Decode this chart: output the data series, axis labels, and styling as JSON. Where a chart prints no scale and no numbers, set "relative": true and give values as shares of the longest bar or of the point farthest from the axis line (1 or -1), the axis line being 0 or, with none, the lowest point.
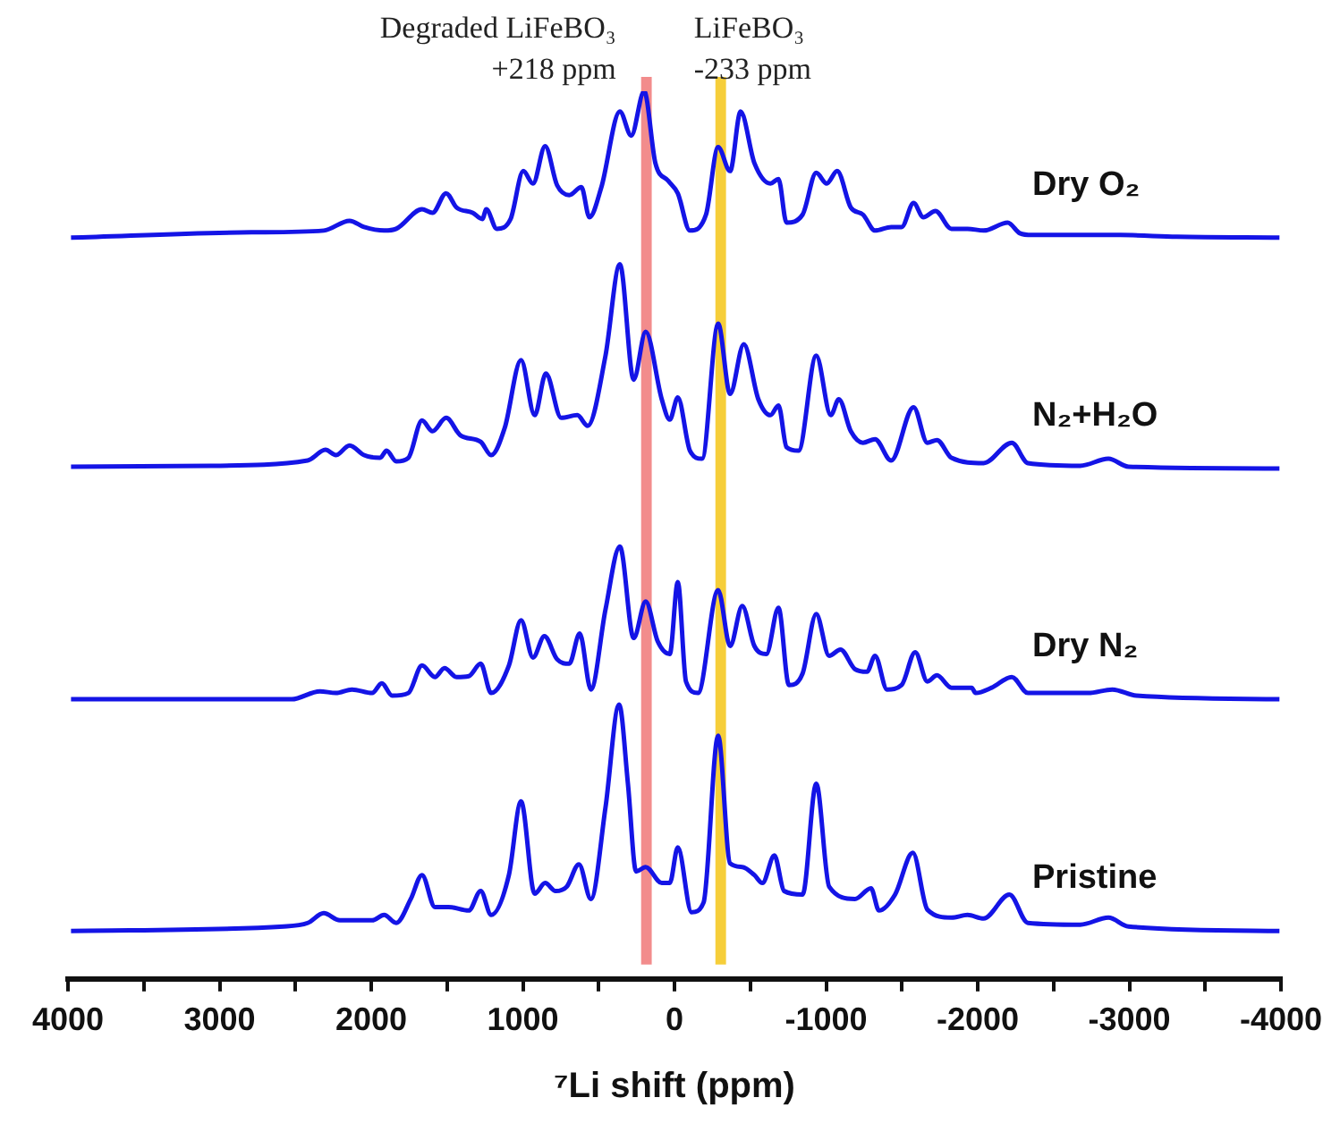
{
  "chart_data": {
    "type": "line",
    "relative": true,
    "xlabel": "⁷Li shift (ppm)",
    "xlim": [
      4000,
      -4000
    ],
    "xticks": [
      4000,
      {
        "value": 3500,
        "label": null
      },
      3000,
      {
        "value": 2500,
        "label": null
      },
      2000,
      {
        "value": 1500,
        "label": null
      },
      1000,
      {
        "value": 500,
        "label": null
      },
      0,
      {
        "value": -500,
        "label": null
      },
      -1000,
      {
        "value": -1500,
        "label": null
      },
      -2000,
      {
        "value": -2500,
        "label": null
      },
      -3000,
      {
        "value": -3500,
        "label": null
      },
      -4000
    ],
    "legend": false,
    "grid": false,
    "marker": "none",
    "bands": [
      {
        "axis": "x",
        "from": 150,
        "to": 220,
        "label": "Degraded LiFeBO₃\n+218 ppm",
        "color": "#f07878"
      },
      {
        "axis": "x",
        "from": -270,
        "to": -340,
        "label": "LiFeBO₃\n-233 ppm",
        "color": "#f5c518"
      }
    ],
    "series": [
      {
        "name": "Dry O₂",
        "color": "#1414e6",
        "x": [
          3980,
          2790,
          2313,
          2143,
          2047,
          1915,
          1835,
          1665,
          1596,
          1506,
          1437,
          1331,
          1267,
          1241,
          1172,
          1081,
          997,
          933,
          853,
          774,
          694,
          614,
          561,
          482,
          360,
          285,
          200,
          126,
          41,
          -22,
          -102,
          -208,
          -288,
          -367,
          -436,
          -527,
          -633,
          -686,
          -739,
          -845,
          -935,
          -1004,
          -1073,
          -1163,
          -1243,
          -1323,
          -1429,
          -1498,
          -1577,
          -1641,
          -1721,
          -1827,
          -1933,
          -2039,
          -2198,
          -2278,
          -2358,
          -2941,
          -3313,
          -3990
        ],
        "values": [
          0.835,
          0.841,
          0.843,
          0.854,
          0.847,
          0.843,
          0.845,
          0.867,
          0.863,
          0.885,
          0.869,
          0.863,
          0.856,
          0.867,
          0.845,
          0.856,
          0.91,
          0.896,
          0.938,
          0.894,
          0.883,
          0.892,
          0.858,
          0.892,
          0.977,
          0.95,
          1.0,
          0.919,
          0.899,
          0.885,
          0.843,
          0.861,
          0.937,
          0.91,
          0.977,
          0.919,
          0.896,
          0.901,
          0.852,
          0.861,
          0.908,
          0.896,
          0.91,
          0.869,
          0.861,
          0.843,
          0.847,
          0.847,
          0.874,
          0.858,
          0.865,
          0.845,
          0.845,
          0.843,
          0.852,
          0.84,
          0.838,
          0.838,
          0.836,
          0.835
        ]
      },
      {
        "name": "N₂+H₂O",
        "color": "#1414e6",
        "x": [
          3980,
          3056,
          2419,
          2302,
          2233,
          2143,
          2047,
          1941,
          1899,
          1835,
          1755,
          1665,
          1596,
          1506,
          1410,
          1278,
          1209,
          1119,
          1012,
          922,
          848,
          747,
          641,
          572,
          455,
          360,
          269,
          190,
          84,
          31,
          -22,
          -102,
          -182,
          -288,
          -367,
          -457,
          -553,
          -633,
          -686,
          -739,
          -818,
          -935,
          -1031,
          -1084,
          -1163,
          -1243,
          -1323,
          -1429,
          -1577,
          -1668,
          -1731,
          -1827,
          -2039,
          -2225,
          -2331,
          -2676,
          -2862,
          -2994,
          -3990
        ],
        "values": [
          0.577,
          0.578,
          0.584,
          0.596,
          0.59,
          0.601,
          0.59,
          0.587,
          0.595,
          0.583,
          0.587,
          0.629,
          0.617,
          0.632,
          0.612,
          0.605,
          0.59,
          0.621,
          0.697,
          0.635,
          0.682,
          0.632,
          0.635,
          0.623,
          0.702,
          0.805,
          0.675,
          0.729,
          0.653,
          0.63,
          0.655,
          0.595,
          0.586,
          0.738,
          0.659,
          0.715,
          0.653,
          0.635,
          0.646,
          0.599,
          0.595,
          0.702,
          0.635,
          0.653,
          0.617,
          0.604,
          0.608,
          0.584,
          0.644,
          0.604,
          0.607,
          0.587,
          0.581,
          0.604,
          0.581,
          0.578,
          0.586,
          0.577,
          0.575
        ]
      },
      {
        "name": "Dry N₂",
        "color": "#1414e6",
        "x": [
          3980,
          2525,
          2339,
          2233,
          2127,
          1994,
          1930,
          1862,
          1755,
          1665,
          1580,
          1517,
          1437,
          1357,
          1278,
          1209,
          1092,
          1012,
          933,
          858,
          774,
          694,
          625,
          551,
          455,
          360,
          269,
          190,
          110,
          31,
          -22,
          -76,
          -155,
          -288,
          -367,
          -447,
          -527,
          -606,
          -686,
          -755,
          -845,
          -935,
          -1020,
          -1095,
          -1190,
          -1270,
          -1323,
          -1402,
          -1498,
          -1588,
          -1668,
          -1731,
          -1827,
          -1960,
          -1986,
          -2092,
          -2225,
          -2331,
          -2729,
          -2888,
          -3047,
          -3990
        ],
        "values": [
          0.315,
          0.315,
          0.324,
          0.322,
          0.326,
          0.322,
          0.333,
          0.319,
          0.322,
          0.353,
          0.34,
          0.35,
          0.34,
          0.341,
          0.355,
          0.322,
          0.353,
          0.404,
          0.362,
          0.386,
          0.36,
          0.355,
          0.389,
          0.326,
          0.416,
          0.487,
          0.384,
          0.425,
          0.38,
          0.366,
          0.447,
          0.335,
          0.322,
          0.438,
          0.375,
          0.42,
          0.375,
          0.366,
          0.418,
          0.331,
          0.344,
          0.411,
          0.364,
          0.371,
          0.349,
          0.346,
          0.364,
          0.326,
          0.331,
          0.368,
          0.335,
          0.342,
          0.328,
          0.328,
          0.322,
          0.328,
          0.34,
          0.322,
          0.322,
          0.326,
          0.319,
          0.315
        ]
      },
      {
        "name": "Pristine",
        "color": "#1414e6",
        "x": [
          3980,
          2578,
          2419,
          2313,
          2207,
          1994,
          1915,
          1835,
          1739,
          1665,
          1580,
          1490,
          1357,
          1278,
          1209,
          1092,
          1012,
          922,
          853,
          784,
          710,
          630,
          551,
          455,
          365,
          307,
          253,
          190,
          84,
          31,
          -22,
          -113,
          -192,
          -288,
          -367,
          -447,
          -527,
          -580,
          -659,
          -723,
          -845,
          -935,
          -1020,
          -1190,
          -1296,
          -1349,
          -1455,
          -1572,
          -1668,
          -1827,
          -1933,
          -2039,
          -2209,
          -2331,
          -2676,
          -2862,
          -2994,
          -3990
        ],
        "values": [
          0.054,
          0.059,
          0.063,
          0.074,
          0.066,
          0.066,
          0.072,
          0.063,
          0.09,
          0.117,
          0.081,
          0.081,
          0.077,
          0.099,
          0.072,
          0.117,
          0.2,
          0.096,
          0.108,
          0.099,
          0.104,
          0.129,
          0.09,
          0.193,
          0.309,
          0.22,
          0.121,
          0.126,
          0.108,
          0.108,
          0.148,
          0.075,
          0.086,
          0.274,
          0.13,
          0.126,
          0.117,
          0.108,
          0.139,
          0.099,
          0.095,
          0.22,
          0.104,
          0.09,
          0.102,
          0.077,
          0.095,
          0.142,
          0.078,
          0.069,
          0.072,
          0.068,
          0.095,
          0.063,
          0.061,
          0.069,
          0.059,
          0.054
        ]
      }
    ]
  }
}
